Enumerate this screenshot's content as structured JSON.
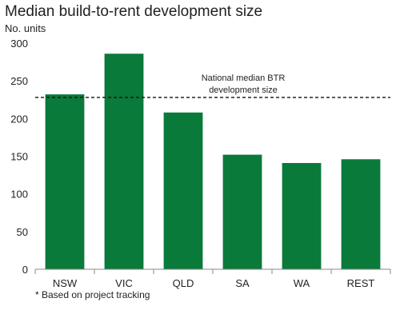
{
  "chart_data": {
    "type": "bar",
    "title": "Median build-to-rent development size",
    "ylabel": "No. units",
    "categories": [
      "NSW",
      "VIC",
      "QLD",
      "SA",
      "WA",
      "REST"
    ],
    "values": [
      232,
      286,
      208,
      152,
      141,
      146
    ],
    "ylim": [
      0,
      300
    ],
    "yticks": [
      0,
      50,
      100,
      150,
      200,
      250,
      300
    ],
    "bar_color": "#0a7a3b",
    "grid": false,
    "reference_line": {
      "value": 228,
      "style": "dashed",
      "label_lines": [
        "National median BTR",
        "development size"
      ]
    },
    "footnote": "* Based on project tracking"
  }
}
